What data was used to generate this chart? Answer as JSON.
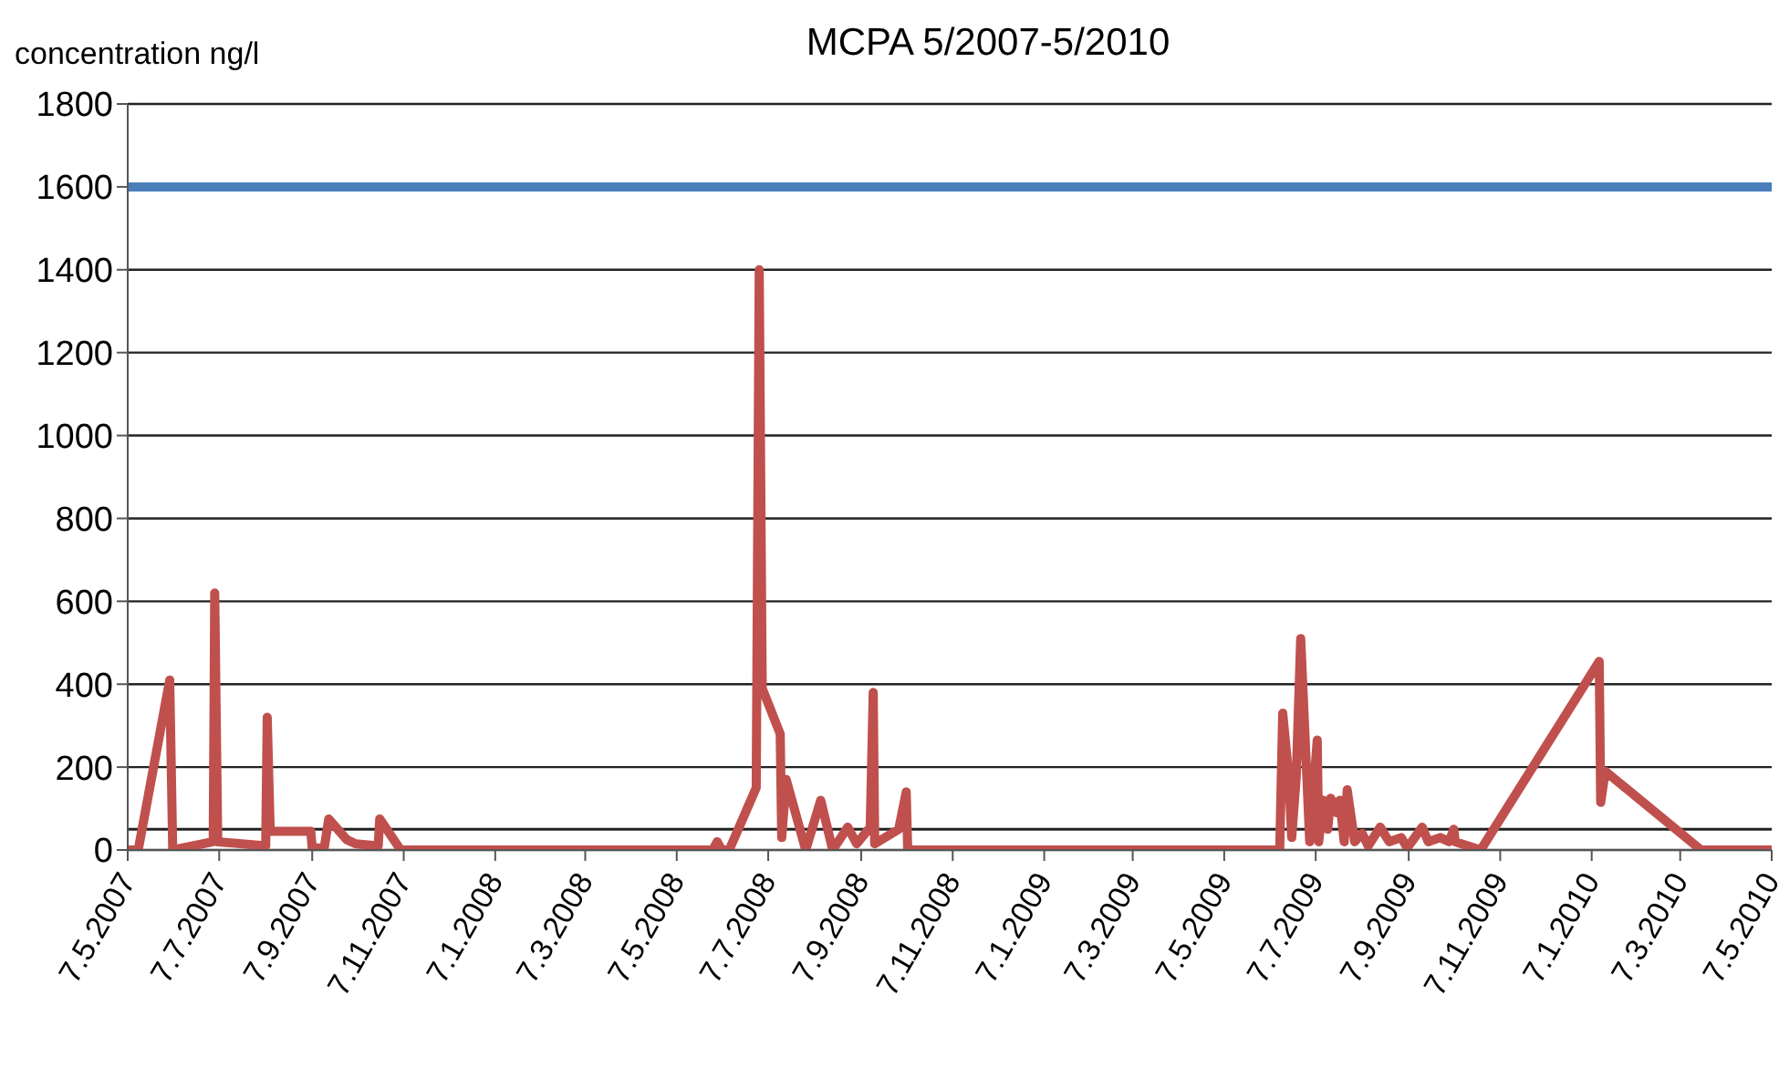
{
  "chart_data": {
    "type": "line",
    "title": "MCPA 5/2007-5/2010",
    "ylabel": "concentration ng/l",
    "x": [
      "2007-05-07",
      "2007-05-14",
      "2007-06-04",
      "2007-06-06",
      "2007-07-03",
      "2007-07-04",
      "2007-07-06",
      "2007-08-07",
      "2007-08-08",
      "2007-08-10",
      "2007-08-30",
      "2007-09-06",
      "2007-09-07",
      "2007-09-15",
      "2007-09-18",
      "2007-09-30",
      "2007-10-06",
      "2007-10-21",
      "2007-10-22",
      "2007-11-05",
      "2008-05-31",
      "2008-06-03",
      "2008-06-06",
      "2008-06-11",
      "2008-06-29",
      "2008-07-01",
      "2008-07-03",
      "2008-07-15",
      "2008-07-16",
      "2008-07-19",
      "2008-08-01",
      "2008-08-11",
      "2008-08-19",
      "2008-08-29",
      "2008-09-04",
      "2008-09-13",
      "2008-09-15",
      "2008-09-16",
      "2008-10-02",
      "2008-10-07",
      "2008-10-08",
      "2009-06-13",
      "2009-06-15",
      "2009-06-19",
      "2009-06-21",
      "2009-06-24",
      "2009-06-27",
      "2009-07-03",
      "2009-07-08",
      "2009-07-09",
      "2009-07-12",
      "2009-07-15",
      "2009-07-17",
      "2009-07-21",
      "2009-07-23",
      "2009-07-26",
      "2009-07-28",
      "2009-08-02",
      "2009-08-07",
      "2009-08-11",
      "2009-08-19",
      "2009-08-25",
      "2009-09-02",
      "2009-09-06",
      "2009-09-16",
      "2009-09-20",
      "2009-09-28",
      "2009-10-04",
      "2009-10-07",
      "2009-10-08",
      "2009-10-25",
      "2010-01-12",
      "2010-01-13",
      "2010-01-16",
      "2010-03-21",
      "2010-05-07"
    ],
    "series": [
      {
        "color": "#c0504d",
        "values": [
          0,
          0,
          410,
          0,
          20,
          620,
          20,
          10,
          320,
          45,
          45,
          45,
          5,
          5,
          75,
          25,
          15,
          10,
          75,
          0,
          0,
          20,
          0,
          0,
          150,
          1400,
          390,
          280,
          30,
          170,
          0,
          120,
          0,
          55,
          15,
          55,
          380,
          15,
          50,
          140,
          0,
          0,
          330,
          180,
          30,
          175,
          510,
          20,
          265,
          20,
          120,
          50,
          125,
          90,
          120,
          20,
          145,
          20,
          40,
          10,
          55,
          20,
          30,
          5,
          55,
          20,
          30,
          20,
          50,
          20,
          0,
          455,
          115,
          190,
          0,
          0
        ]
      }
    ],
    "xlim": [
      "2007-05-07",
      "2010-05-07"
    ],
    "xticks": [
      {
        "value": "2007-05-07",
        "label": "7.5.2007"
      },
      {
        "value": "2007-07-07",
        "label": "7.7.2007"
      },
      {
        "value": "2007-09-07",
        "label": "7.9.2007"
      },
      {
        "value": "2007-11-07",
        "label": "7.11.2007"
      },
      {
        "value": "2008-01-07",
        "label": "7.1.2008"
      },
      {
        "value": "2008-03-07",
        "label": "7.3.2008"
      },
      {
        "value": "2008-05-07",
        "label": "7.5.2008"
      },
      {
        "value": "2008-07-07",
        "label": "7.7.2008"
      },
      {
        "value": "2008-09-07",
        "label": "7.9.2008"
      },
      {
        "value": "2008-11-07",
        "label": "7.11.2008"
      },
      {
        "value": "2009-01-07",
        "label": "7.1.2009"
      },
      {
        "value": "2009-03-07",
        "label": "7.3.2009"
      },
      {
        "value": "2009-05-07",
        "label": "7.5.2009"
      },
      {
        "value": "2009-07-07",
        "label": "7.7.2009"
      },
      {
        "value": "2009-09-07",
        "label": "7.9.2009"
      },
      {
        "value": "2009-11-07",
        "label": "7.11.2009"
      },
      {
        "value": "2010-01-07",
        "label": "7.1.2010"
      },
      {
        "value": "2010-03-07",
        "label": "7.3.2010"
      },
      {
        "value": "2010-05-07",
        "label": "7.5.2010"
      }
    ],
    "ylim": [
      0,
      1800
    ],
    "yticks": [
      0,
      200,
      400,
      600,
      800,
      1000,
      1200,
      1400,
      1600,
      1800
    ],
    "ref_lines": [
      {
        "axis": "y",
        "value": 1600,
        "color": "#4a7ebb"
      },
      {
        "axis": "y",
        "value": 50,
        "color": "#222222"
      }
    ],
    "grid": "y",
    "legend": false,
    "marker": "none",
    "line_style": "solid"
  }
}
